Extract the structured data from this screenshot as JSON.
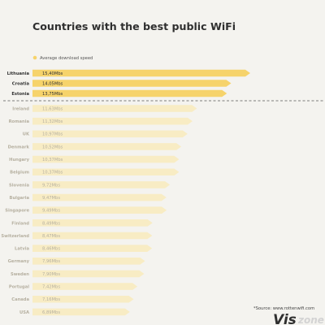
{
  "chart_data": {
    "type": "bar",
    "orientation": "horizontal",
    "title": "Countries with the best public WiFi",
    "legend": [
      "Average download speed"
    ],
    "legend_placement": "top-left",
    "series": [
      {
        "name": "Average download speed",
        "unit": "Mbs",
        "categories": [
          "Lithuania",
          "Croatia",
          "Estonia",
          "Ireland",
          "Romania",
          "UK",
          "Denmark",
          "Hungary",
          "Belgium",
          "Slovenia",
          "Bulgaria",
          "Singapore",
          "Finland",
          "Switzerland",
          "Latvia",
          "Germany",
          "Sweden",
          "Portugal",
          "Canada",
          "USA"
        ],
        "values": [
          15.4,
          14.05,
          13.75,
          11.63,
          11.32,
          10.97,
          10.52,
          10.37,
          10.37,
          9.72,
          9.47,
          9.49,
          8.49,
          8.47,
          8.46,
          7.96,
          7.9,
          7.42,
          7.16,
          6.89
        ],
        "labels": [
          "15,40Mbs",
          "14,05Mbs",
          "13,75Mbs",
          "11,63Mbs",
          "11,32Mbs",
          "10,97Mbs",
          "10,52Mbs",
          "10,37Mbs",
          "10,37Mbs",
          "9,72Mbs",
          "9,47Mbs",
          "9,49Mbs",
          "8,49Mbs",
          "8,47Mbs",
          "8,46Mbs",
          "7,96Mbs",
          "7,90Mbs",
          "7,42Mbs",
          "7,16Mbs",
          "6,89Mbs"
        ]
      }
    ],
    "highlighted_count": 3,
    "colors": {
      "highlight": "#f6d36b",
      "other": "#f8ecc4",
      "highlight_label": "#333333",
      "other_label": "#b6b0a0",
      "divider": "#555555"
    }
  },
  "footer": {
    "source": "*Source: www.rottenwifi.com",
    "brand_vis": "Vis",
    "brand_zone": "zone"
  }
}
